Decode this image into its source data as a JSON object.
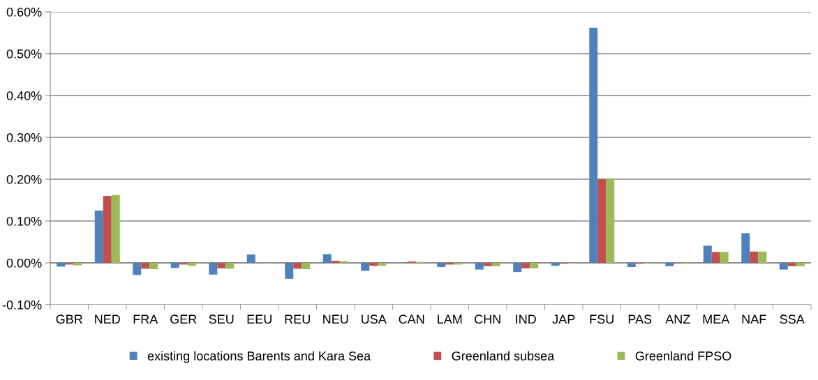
{
  "chart_data": {
    "type": "bar",
    "categories": [
      "GBR",
      "NED",
      "FRA",
      "GER",
      "SEU",
      "EEU",
      "REU",
      "NEU",
      "USA",
      "CAN",
      "LAM",
      "CHN",
      "IND",
      "JAP",
      "FSU",
      "PAS",
      "ANZ",
      "MEA",
      "NAF",
      "SSA"
    ],
    "series": [
      {
        "name": "existing locations Barents and Kara Sea",
        "color": "#4f81bd",
        "values": [
          -0.009,
          0.125,
          -0.029,
          -0.012,
          -0.028,
          0.02,
          -0.038,
          0.021,
          -0.019,
          0,
          -0.01,
          -0.016,
          -0.022,
          -0.007,
          0.562,
          -0.01,
          -0.008,
          0.041,
          0.071,
          -0.016
        ]
      },
      {
        "name": "Greenland subsea",
        "color": "#c0504d",
        "values": [
          -0.004,
          0.16,
          -0.014,
          -0.004,
          -0.013,
          0,
          -0.014,
          0.005,
          -0.007,
          0.003,
          -0.004,
          -0.008,
          -0.013,
          -0.002,
          0.2,
          -0.002,
          -0.001,
          0.026,
          0.027,
          -0.008
        ]
      },
      {
        "name": "Greenland FPSO",
        "color": "#9bbb59",
        "values": [
          -0.006,
          0.162,
          -0.015,
          -0.007,
          -0.014,
          -0.001,
          -0.015,
          0.004,
          -0.007,
          0.002,
          -0.004,
          -0.008,
          -0.013,
          -0.002,
          0.202,
          -0.002,
          -0.002,
          0.026,
          0.027,
          -0.008
        ]
      }
    ],
    "ylim": [
      -0.1,
      0.6
    ],
    "yticks": [
      {
        "value": -0.1,
        "label": "-0.10%"
      },
      {
        "value": 0,
        "label": "0.00%"
      },
      {
        "value": 0.1,
        "label": "0.10%"
      },
      {
        "value": 0.2,
        "label": "0.20%"
      },
      {
        "value": 0.3,
        "label": "0.30%"
      },
      {
        "value": 0.4,
        "label": "0.40%"
      },
      {
        "value": 0.5,
        "label": "0.50%"
      },
      {
        "value": 0.6,
        "label": "0.60%"
      }
    ],
    "grid": "y",
    "legend": "bottom"
  }
}
